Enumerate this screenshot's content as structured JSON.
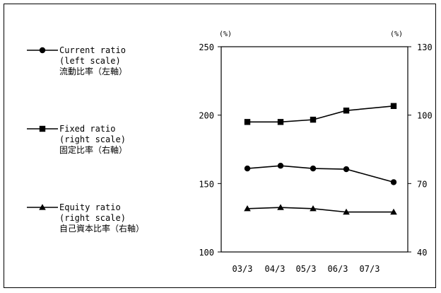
{
  "chart_data": {
    "type": "line",
    "categories": [
      "03/3",
      "04/3",
      "05/3",
      "06/3",
      "07/3"
    ],
    "left_axis": {
      "unit": "(%)",
      "ylim": [
        100,
        250
      ],
      "ticks": [
        100,
        150,
        200,
        250
      ]
    },
    "right_axis": {
      "unit": "(%)",
      "ylim": [
        40,
        130
      ],
      "ticks": [
        40,
        70,
        100,
        130
      ]
    },
    "grid": false,
    "legend_position": "left",
    "series": [
      {
        "name_lines": [
          "Current ratio",
          "(left scale)",
          "流動比率（左軸）"
        ],
        "axis": "left",
        "marker": "circle",
        "values": [
          161,
          163,
          161,
          160.5,
          151
        ]
      },
      {
        "name_lines": [
          "Fixed ratio",
          "(right scale)",
          "固定比率（右軸）"
        ],
        "axis": "right",
        "marker": "square",
        "values": [
          97,
          97,
          98,
          102,
          104
        ]
      },
      {
        "name_lines": [
          "Equity ratio",
          "(right scale)",
          "自己資本比率（右軸）"
        ],
        "axis": "right",
        "marker": "triangle",
        "values": [
          59,
          59.5,
          59,
          57.5,
          57.5
        ]
      }
    ]
  }
}
